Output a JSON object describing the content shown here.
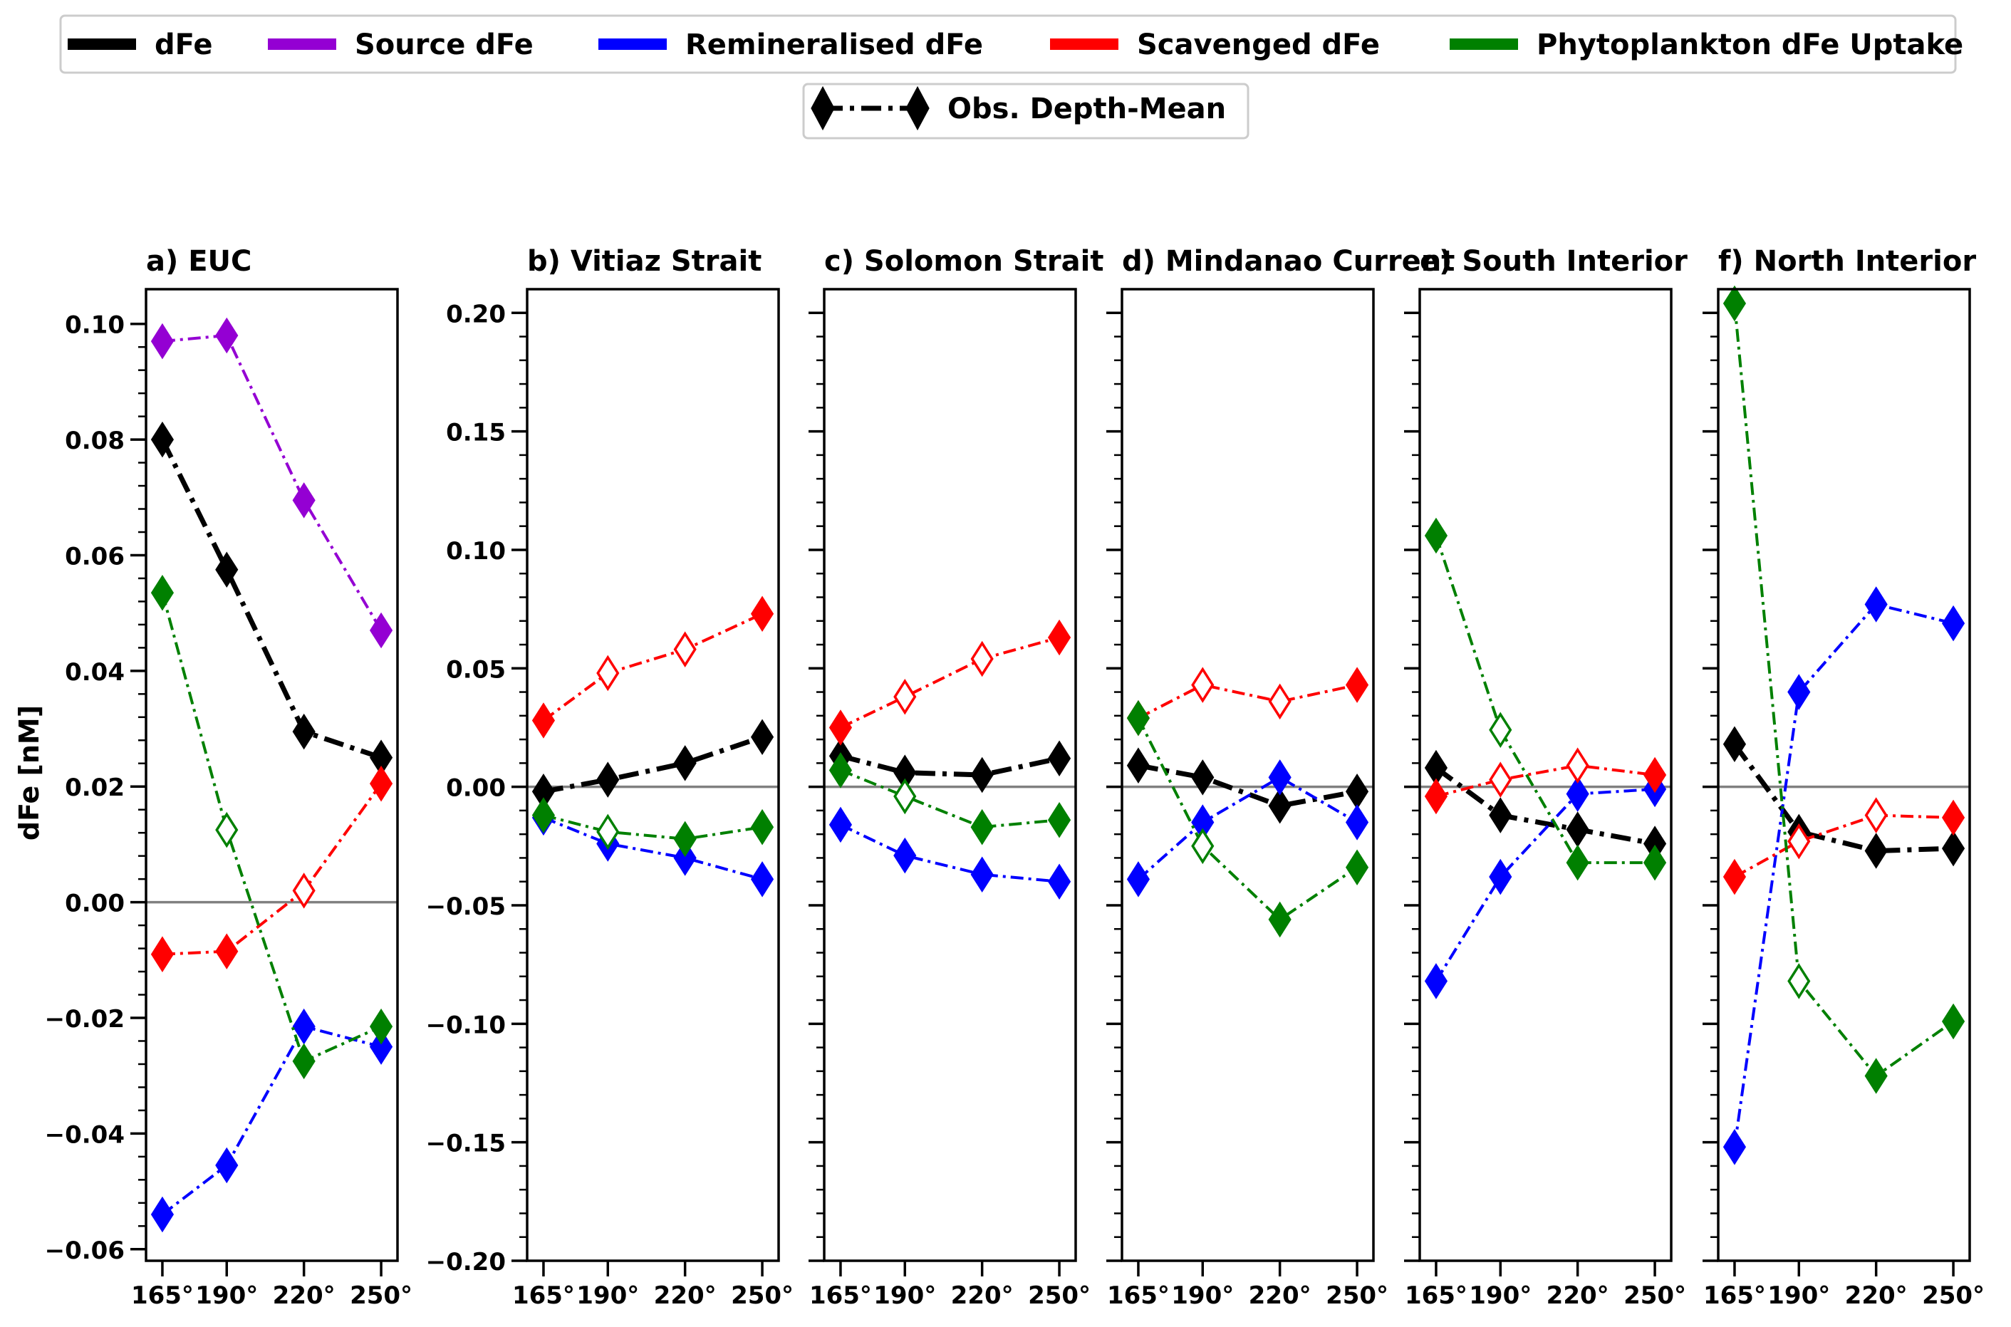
{
  "chart_data": {
    "type": "line",
    "ylabel": "dFe [nM]",
    "x": [
      165,
      190,
      220,
      250
    ],
    "x_tick_labels": [
      "165°",
      "190°",
      "220°",
      "250°"
    ],
    "legend": {
      "placement": "top-center",
      "entries": [
        {
          "label": "dFe",
          "color": "#000000"
        },
        {
          "label": "Source dFe",
          "color": "#9400d3"
        },
        {
          "label": "Remineralised dFe",
          "color": "#0000ff"
        },
        {
          "label": "Scavenged dFe",
          "color": "#ff0000"
        },
        {
          "label": "Phytoplankton dFe Uptake",
          "color": "#008000"
        }
      ],
      "marker_entry": {
        "label": "Obs. Depth-Mean",
        "color": "#000000"
      }
    },
    "panels": [
      {
        "title": "a) EUC",
        "ylim": [
          -0.062,
          0.106
        ],
        "yticks": [
          -0.06,
          -0.04,
          -0.02,
          0.0,
          0.02,
          0.04,
          0.06,
          0.08,
          0.1
        ],
        "ytick_labels": [
          "−0.06",
          "−0.04",
          "−0.02",
          "0.00",
          "0.02",
          "0.04",
          "0.06",
          "0.08",
          "0.10"
        ],
        "series": [
          {
            "key": "dfe",
            "color": "#000000",
            "values": [
              0.08,
              0.0575,
              0.0295,
              0.025
            ],
            "filled": [
              true,
              true,
              true,
              true
            ],
            "thick": true
          },
          {
            "key": "source",
            "color": "#9400d3",
            "values": [
              0.097,
              0.098,
              0.0695,
              0.047
            ],
            "filled": [
              true,
              true,
              true,
              true
            ]
          },
          {
            "key": "remin",
            "color": "#0000ff",
            "values": [
              -0.054,
              -0.0455,
              -0.0215,
              -0.025
            ],
            "filled": [
              true,
              true,
              true,
              true
            ]
          },
          {
            "key": "scav",
            "color": "#ff0000",
            "values": [
              -0.009,
              -0.0085,
              0.002,
              0.0205
            ],
            "filled": [
              true,
              true,
              false,
              true
            ]
          },
          {
            "key": "phyto",
            "color": "#008000",
            "values": [
              0.0535,
              0.0125,
              -0.0275,
              -0.0215
            ],
            "filled": [
              true,
              false,
              true,
              true
            ]
          }
        ]
      },
      {
        "title": "b) Vitiaz Strait",
        "ylim": [
          -0.2,
          0.21
        ],
        "yticks": [
          -0.2,
          -0.15,
          -0.1,
          -0.05,
          0.0,
          0.05,
          0.1,
          0.15,
          0.2
        ],
        "ytick_labels": [
          "−0.20",
          "−0.15",
          "−0.10",
          "−0.05",
          "0.00",
          "0.05",
          "0.10",
          "0.15",
          "0.20"
        ],
        "series": [
          {
            "key": "dfe",
            "color": "#000000",
            "values": [
              -0.002,
              0.003,
              0.01,
              0.021
            ],
            "filled": [
              true,
              true,
              true,
              true
            ],
            "thick": true
          },
          {
            "key": "remin",
            "color": "#0000ff",
            "values": [
              -0.013,
              -0.024,
              -0.03,
              -0.039
            ],
            "filled": [
              true,
              true,
              true,
              true
            ]
          },
          {
            "key": "scav",
            "color": "#ff0000",
            "values": [
              0.028,
              0.048,
              0.058,
              0.073
            ],
            "filled": [
              true,
              false,
              false,
              true
            ]
          },
          {
            "key": "phyto",
            "color": "#008000",
            "values": [
              -0.012,
              -0.019,
              -0.022,
              -0.017
            ],
            "filled": [
              true,
              false,
              true,
              true
            ]
          }
        ]
      },
      {
        "title": "c) Solomon Strait",
        "ylim": [
          -0.2,
          0.21
        ],
        "yticks": [
          -0.2,
          -0.15,
          -0.1,
          -0.05,
          0.0,
          0.05,
          0.1,
          0.15,
          0.2
        ],
        "series": [
          {
            "key": "dfe",
            "color": "#000000",
            "values": [
              0.013,
              0.006,
              0.005,
              0.012
            ],
            "filled": [
              true,
              true,
              true,
              true
            ],
            "thick": true
          },
          {
            "key": "remin",
            "color": "#0000ff",
            "values": [
              -0.016,
              -0.029,
              -0.037,
              -0.04
            ],
            "filled": [
              true,
              true,
              true,
              true
            ]
          },
          {
            "key": "scav",
            "color": "#ff0000",
            "values": [
              0.025,
              0.038,
              0.054,
              0.063
            ],
            "filled": [
              true,
              false,
              false,
              true
            ]
          },
          {
            "key": "phyto",
            "color": "#008000",
            "values": [
              0.007,
              -0.004,
              -0.017,
              -0.014
            ],
            "filled": [
              true,
              false,
              true,
              true
            ]
          }
        ]
      },
      {
        "title": "d) Mindanao Current",
        "ylim": [
          -0.2,
          0.21
        ],
        "yticks": [
          -0.2,
          -0.15,
          -0.1,
          -0.05,
          0.0,
          0.05,
          0.1,
          0.15,
          0.2
        ],
        "series": [
          {
            "key": "dfe",
            "color": "#000000",
            "values": [
              0.009,
              0.004,
              -0.008,
              -0.002
            ],
            "filled": [
              true,
              true,
              true,
              true
            ],
            "thick": true
          },
          {
            "key": "remin",
            "color": "#0000ff",
            "values": [
              -0.039,
              -0.015,
              0.004,
              -0.015
            ],
            "filled": [
              true,
              true,
              true,
              true
            ]
          },
          {
            "key": "scav",
            "color": "#ff0000",
            "values": [
              0.029,
              0.043,
              0.036,
              0.043
            ],
            "filled": [
              true,
              false,
              false,
              true
            ]
          },
          {
            "key": "phyto",
            "color": "#008000",
            "values": [
              0.029,
              -0.025,
              -0.056,
              -0.034
            ],
            "filled": [
              true,
              false,
              true,
              true
            ]
          }
        ]
      },
      {
        "title": "e) South Interior",
        "ylim": [
          -0.2,
          0.21
        ],
        "yticks": [
          -0.2,
          -0.15,
          -0.1,
          -0.05,
          0.0,
          0.05,
          0.1,
          0.15,
          0.2
        ],
        "series": [
          {
            "key": "dfe",
            "color": "#000000",
            "values": [
              0.008,
              -0.012,
              -0.018,
              -0.024
            ],
            "filled": [
              true,
              true,
              true,
              true
            ],
            "thick": true
          },
          {
            "key": "remin",
            "color": "#0000ff",
            "values": [
              -0.082,
              -0.038,
              -0.003,
              -0.001
            ],
            "filled": [
              true,
              true,
              true,
              true
            ]
          },
          {
            "key": "scav",
            "color": "#ff0000",
            "values": [
              -0.004,
              0.003,
              0.009,
              0.005
            ],
            "filled": [
              true,
              false,
              false,
              true
            ]
          },
          {
            "key": "phyto",
            "color": "#008000",
            "values": [
              0.106,
              0.024,
              -0.032,
              -0.032
            ],
            "filled": [
              true,
              false,
              true,
              true
            ]
          }
        ]
      },
      {
        "title": "f) North Interior",
        "ylim": [
          -0.2,
          0.21
        ],
        "yticks": [
          -0.2,
          -0.15,
          -0.1,
          -0.05,
          0.0,
          0.05,
          0.1,
          0.15,
          0.2
        ],
        "series": [
          {
            "key": "dfe",
            "color": "#000000",
            "values": [
              0.018,
              -0.019,
              -0.027,
              -0.026
            ],
            "filled": [
              true,
              true,
              true,
              true
            ],
            "thick": true
          },
          {
            "key": "remin",
            "color": "#0000ff",
            "values": [
              -0.152,
              0.04,
              0.077,
              0.069
            ],
            "filled": [
              true,
              true,
              true,
              true
            ]
          },
          {
            "key": "scav",
            "color": "#ff0000",
            "values": [
              -0.038,
              -0.023,
              -0.012,
              -0.013
            ],
            "filled": [
              true,
              false,
              false,
              true
            ]
          },
          {
            "key": "phyto",
            "color": "#008000",
            "values": [
              0.204,
              -0.082,
              -0.122,
              -0.099
            ],
            "filled": [
              true,
              false,
              true,
              true
            ]
          }
        ]
      }
    ]
  }
}
